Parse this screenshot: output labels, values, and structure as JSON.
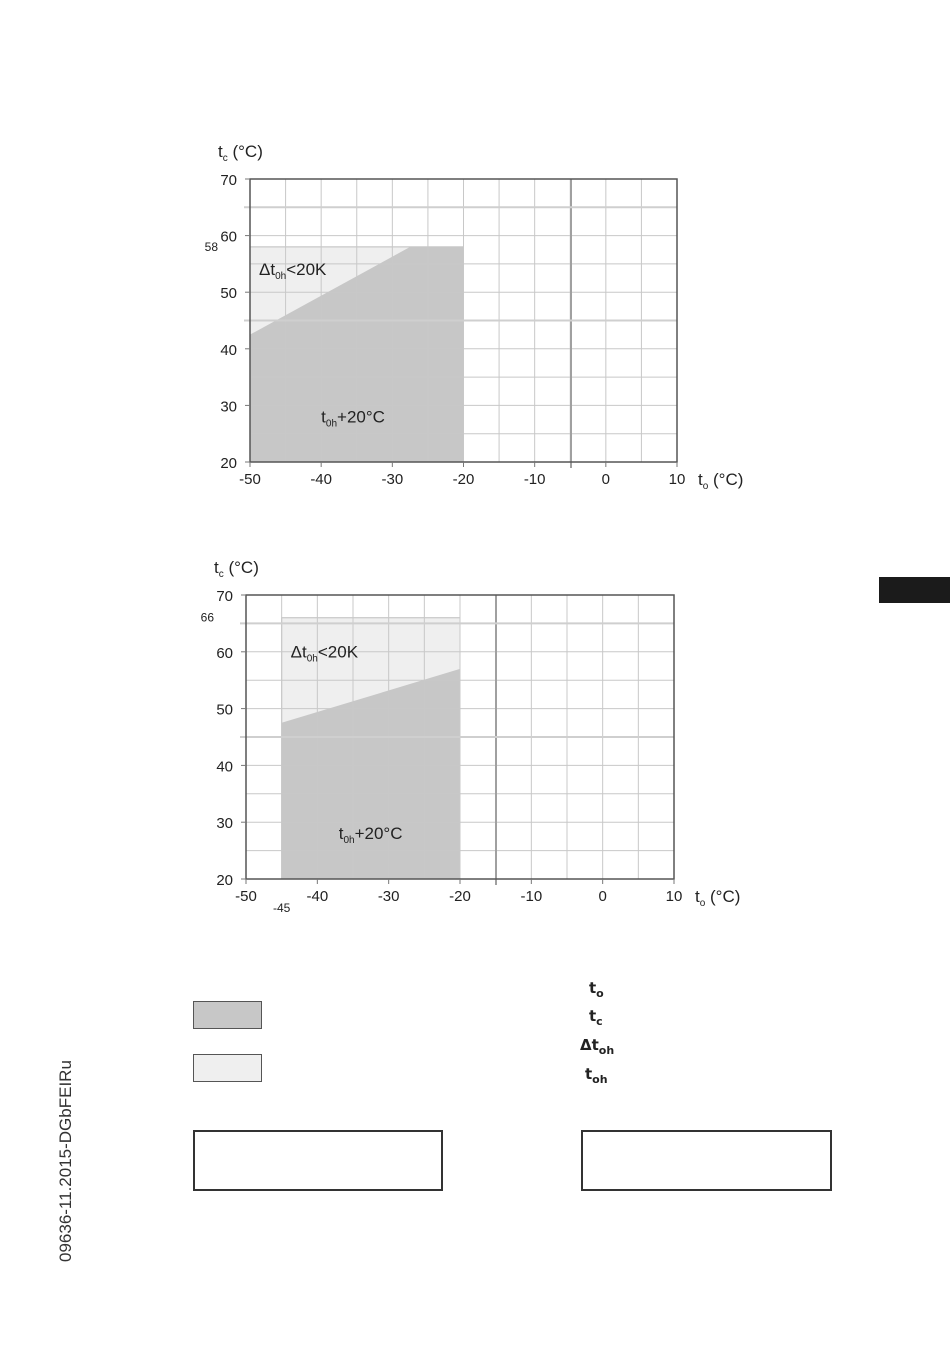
{
  "chart_data": [
    {
      "type": "area",
      "ylabel_main": "t",
      "ylabel_sub": "c",
      "ylabel_unit": " (°C)",
      "xlabel_main": "t",
      "xlabel_sub": "o",
      "xlabel_unit": " (°C)",
      "xlim": [
        -50,
        10
      ],
      "ylim": [
        20,
        70
      ],
      "xticks": [
        -50,
        -40,
        -30,
        -20,
        -10,
        0,
        10
      ],
      "yticks": [
        20,
        30,
        40,
        50,
        60,
        70
      ],
      "extra_y_tick": 58,
      "extra_x_tick": null,
      "envelope": [
        [
          -50,
          20
        ],
        [
          -50,
          58
        ],
        [
          -20,
          58
        ],
        [
          -20,
          20
        ]
      ],
      "superheat_limit_line": [
        [
          -50,
          42.5
        ],
        [
          -27.5,
          58
        ]
      ],
      "region_light_label_main": "Δt",
      "region_light_label_sub": "0h",
      "region_light_label_rest": "<20K",
      "region_dark_label_main": "t",
      "region_dark_label_sub": "0h",
      "region_dark_label_rest": "+20°C"
    },
    {
      "type": "area",
      "ylabel_main": "t",
      "ylabel_sub": "c",
      "ylabel_unit": " (°C)",
      "xlabel_main": "t",
      "xlabel_sub": "o",
      "xlabel_unit": " (°C)",
      "xlim": [
        -50,
        10
      ],
      "ylim": [
        20,
        70
      ],
      "xticks": [
        -50,
        -40,
        -30,
        -20,
        -10,
        0,
        10
      ],
      "yticks": [
        20,
        30,
        40,
        50,
        60,
        70
      ],
      "extra_y_tick": 66,
      "extra_x_tick": -45,
      "envelope": [
        [
          -45,
          20
        ],
        [
          -45,
          66
        ],
        [
          -20,
          66
        ],
        [
          -20,
          20
        ]
      ],
      "superheat_limit_line": [
        [
          -45,
          47.5
        ],
        [
          -20,
          57
        ]
      ],
      "region_light_label_main": "Δt",
      "region_light_label_sub": "0h",
      "region_light_label_rest": "<20K",
      "region_dark_label_main": "t",
      "region_dark_label_sub": "0h",
      "region_dark_label_rest": "+20°C"
    }
  ],
  "legend": {
    "symbols": [
      {
        "main": "t",
        "sub": "o"
      },
      {
        "main": "t",
        "sub": "c"
      },
      {
        "main": "Δt",
        "sub": "oh"
      },
      {
        "main": "t",
        "sub": "oh"
      }
    ],
    "dark_color": "#c7c7c7",
    "light_color": "#efefef"
  },
  "footer_code": "09636-11.2015-DGbFEIRu"
}
